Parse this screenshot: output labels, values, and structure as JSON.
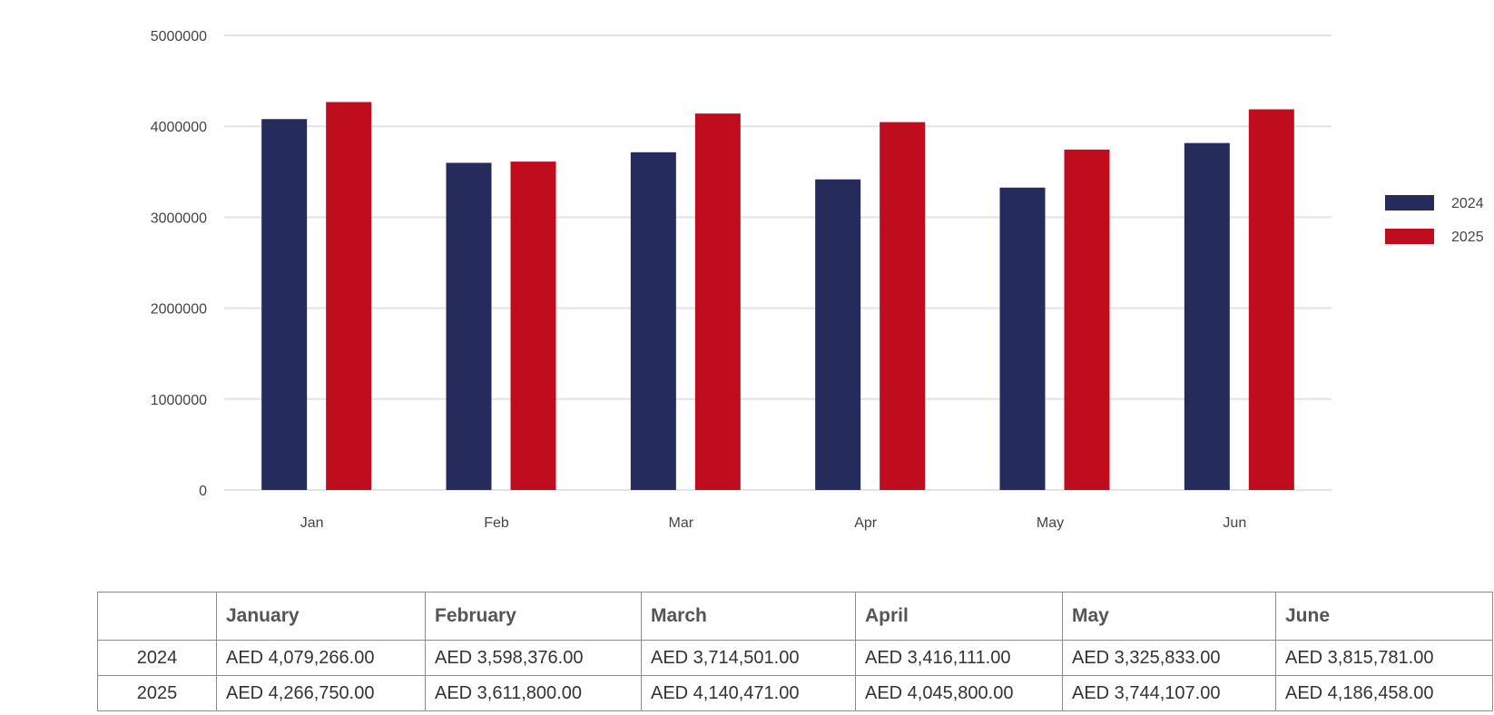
{
  "chart_data": {
    "type": "bar",
    "categories": [
      "Jan",
      "Feb",
      "Mar",
      "Apr",
      "May",
      "Jun"
    ],
    "series": [
      {
        "name": "2024",
        "color": "#252c5b",
        "values": [
          4079266,
          3598376,
          3714501,
          3416111,
          3325833,
          3815781
        ]
      },
      {
        "name": "2025",
        "color": "#c00d1e",
        "values": [
          4266750,
          3611800,
          4140471,
          4045800,
          3744107,
          4186458
        ]
      }
    ],
    "yticks": [
      "0",
      "1000000",
      "2000000",
      "3000000",
      "4000000",
      "5000000"
    ],
    "ylim": [
      0,
      5000000
    ],
    "grid": true,
    "legend_position": "right",
    "title": "",
    "xlabel": "",
    "ylabel": ""
  },
  "table": {
    "headers": [
      "",
      "January",
      "February",
      "March",
      "April",
      "May",
      "June"
    ],
    "rows": [
      {
        "label": "2024",
        "cells": [
          "AED 4,079,266.00",
          "AED 3,598,376.00",
          "AED 3,714,501.00",
          "AED 3,416,111.00",
          "AED 3,325,833.00",
          "AED 3,815,781.00"
        ]
      },
      {
        "label": "2025",
        "cells": [
          "AED 4,266,750.00",
          "AED 3,611,800.00",
          "AED 4,140,471.00",
          "AED 4,045,800.00",
          "AED 3,744,107.00",
          "AED 4,186,458.00"
        ]
      }
    ]
  }
}
